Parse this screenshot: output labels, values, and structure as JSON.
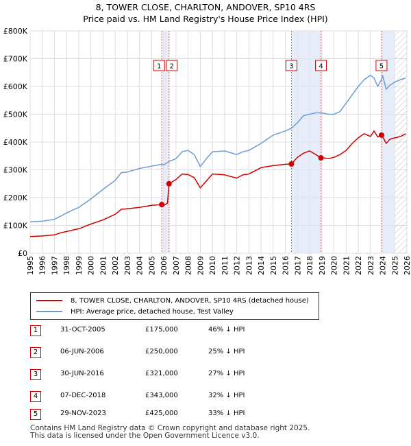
{
  "title": {
    "line1": "8, TOWER CLOSE, CHARLTON, ANDOVER, SP10 4RS",
    "line2": "Price paid vs. HM Land Registry's House Price Index (HPI)"
  },
  "colors": {
    "property": "#cc0000",
    "hpi": "#6b9bd2",
    "shade": "#dde6f5",
    "marker_line": "#cc0000",
    "hatch": "#bbbbbb"
  },
  "chart_data": {
    "type": "line",
    "title": "Price paid vs. HM Land Registry's House Price Index (HPI)",
    "x_range": [
      1995,
      2026
    ],
    "ylim": [
      0,
      800000
    ],
    "y_ticks": [
      0,
      100000,
      200000,
      300000,
      400000,
      500000,
      600000,
      700000,
      800000
    ],
    "y_tick_labels": [
      "£0",
      "£100K",
      "£200K",
      "£300K",
      "£400K",
      "£500K",
      "£600K",
      "£700K",
      "£800K"
    ],
    "x_ticks": [
      1995,
      1996,
      1997,
      1998,
      1999,
      2000,
      2001,
      2002,
      2003,
      2004,
      2005,
      2006,
      2007,
      2008,
      2009,
      2010,
      2011,
      2012,
      2013,
      2014,
      2015,
      2016,
      2017,
      2018,
      2019,
      2020,
      2021,
      2022,
      2023,
      2024,
      2025,
      2026
    ],
    "x_tick_labels": [
      "1995",
      "1996",
      "1997",
      "1998",
      "1999",
      "2000",
      "2001",
      "2002",
      "2003",
      "2004",
      "2005",
      "2006",
      "2007",
      "2008",
      "2009",
      "2010",
      "2011",
      "2012",
      "2013",
      "2014",
      "2015",
      "2016",
      "2017",
      "2018",
      "2019",
      "2020",
      "2021",
      "2022",
      "2023",
      "2024",
      "2025",
      "2026"
    ],
    "grid": true,
    "future_hatch_start": 2025.0,
    "shaded_ranges": [
      [
        2005.83,
        2006.43
      ],
      [
        2016.5,
        2018.93
      ],
      [
        2023.91,
        2025.0
      ]
    ],
    "series": [
      {
        "name": "8, TOWER CLOSE, CHARLTON, ANDOVER, SP10 4RS (detached house)",
        "key": "property",
        "x": [
          1995.0,
          1996.0,
          1997.0,
          1997.5,
          1998.0,
          1999.0,
          2000.0,
          2001.0,
          2002.0,
          2002.5,
          2003.0,
          2004.0,
          2005.0,
          2005.83,
          2006.0,
          2006.3,
          2006.43,
          2007.0,
          2007.5,
          2008.0,
          2008.5,
          2009.0,
          2009.5,
          2010.0,
          2011.0,
          2012.0,
          2012.5,
          2013.0,
          2014.0,
          2015.0,
          2016.0,
          2016.5,
          2016.8,
          2017.0,
          2017.5,
          2018.0,
          2018.5,
          2018.93,
          2019.0,
          2019.5,
          2020.0,
          2020.5,
          2021.0,
          2021.5,
          2022.0,
          2022.5,
          2023.0,
          2023.3,
          2023.6,
          2023.91,
          2024.0,
          2024.3,
          2024.6,
          2025.0,
          2025.5,
          2025.9
        ],
        "values": [
          60000,
          62000,
          66000,
          73000,
          78000,
          88000,
          105000,
          120000,
          140000,
          158000,
          160000,
          165000,
          172000,
          175000,
          172000,
          180000,
          250000,
          265000,
          285000,
          283000,
          272000,
          235000,
          260000,
          285000,
          282000,
          270000,
          282000,
          285000,
          308000,
          315000,
          320000,
          321000,
          336000,
          345000,
          360000,
          368000,
          355000,
          343000,
          345000,
          340000,
          345000,
          355000,
          370000,
          395000,
          415000,
          430000,
          420000,
          440000,
          418000,
          425000,
          420000,
          395000,
          410000,
          415000,
          420000,
          430000
        ]
      },
      {
        "name": "HPI: Average price, detached house, Test Valley",
        "key": "hpi",
        "x": [
          1995.0,
          1996.0,
          1997.0,
          1997.5,
          1998.0,
          1999.0,
          2000.0,
          2001.0,
          2002.0,
          2002.5,
          2003.0,
          2004.0,
          2005.0,
          2005.83,
          2006.0,
          2006.43,
          2007.0,
          2007.5,
          2008.0,
          2008.5,
          2009.0,
          2009.5,
          2010.0,
          2011.0,
          2012.0,
          2012.5,
          2013.0,
          2014.0,
          2015.0,
          2016.0,
          2016.5,
          2017.0,
          2017.5,
          2018.0,
          2018.5,
          2018.93,
          2019.0,
          2019.5,
          2020.0,
          2020.5,
          2021.0,
          2021.5,
          2022.0,
          2022.5,
          2023.0,
          2023.3,
          2023.6,
          2023.91,
          2024.0,
          2024.3,
          2024.6,
          2025.0,
          2025.5,
          2025.9
        ],
        "values": [
          113000,
          115000,
          122000,
          133000,
          145000,
          165000,
          195000,
          230000,
          262000,
          290000,
          292000,
          305000,
          313000,
          320000,
          318000,
          330000,
          340000,
          365000,
          370000,
          355000,
          312000,
          340000,
          365000,
          368000,
          355000,
          365000,
          370000,
          395000,
          425000,
          440000,
          450000,
          470000,
          495000,
          500000,
          505000,
          505000,
          505000,
          500000,
          500000,
          510000,
          540000,
          570000,
          600000,
          625000,
          640000,
          630000,
          600000,
          625000,
          640000,
          590000,
          605000,
          615000,
          625000,
          630000
        ]
      }
    ],
    "sales": [
      {
        "n": "1",
        "year": 2005.83,
        "price": 175000
      },
      {
        "n": "2",
        "year": 2006.43,
        "price": 250000
      },
      {
        "n": "3",
        "year": 2016.5,
        "price": 321000
      },
      {
        "n": "4",
        "year": 2018.93,
        "price": 343000
      },
      {
        "n": "5",
        "year": 2023.91,
        "price": 425000
      }
    ]
  },
  "legend": {
    "property_label": "8, TOWER CLOSE, CHARLTON, ANDOVER, SP10 4RS (detached house)",
    "hpi_label": "HPI: Average price, detached house, Test Valley"
  },
  "sales_table": [
    {
      "n": "1",
      "date": "31-OCT-2005",
      "price": "£175,000",
      "hpi": "46% ↓ HPI"
    },
    {
      "n": "2",
      "date": "06-JUN-2006",
      "price": "£250,000",
      "hpi": "25% ↓ HPI"
    },
    {
      "n": "3",
      "date": "30-JUN-2016",
      "price": "£321,000",
      "hpi": "27% ↓ HPI"
    },
    {
      "n": "4",
      "date": "07-DEC-2018",
      "price": "£343,000",
      "hpi": "32% ↓ HPI"
    },
    {
      "n": "5",
      "date": "29-NOV-2023",
      "price": "£425,000",
      "hpi": "33% ↓ HPI"
    }
  ],
  "footer": {
    "line1": "Contains HM Land Registry data © Crown copyright and database right 2025.",
    "line2": "This data is licensed under the Open Government Licence v3.0."
  }
}
